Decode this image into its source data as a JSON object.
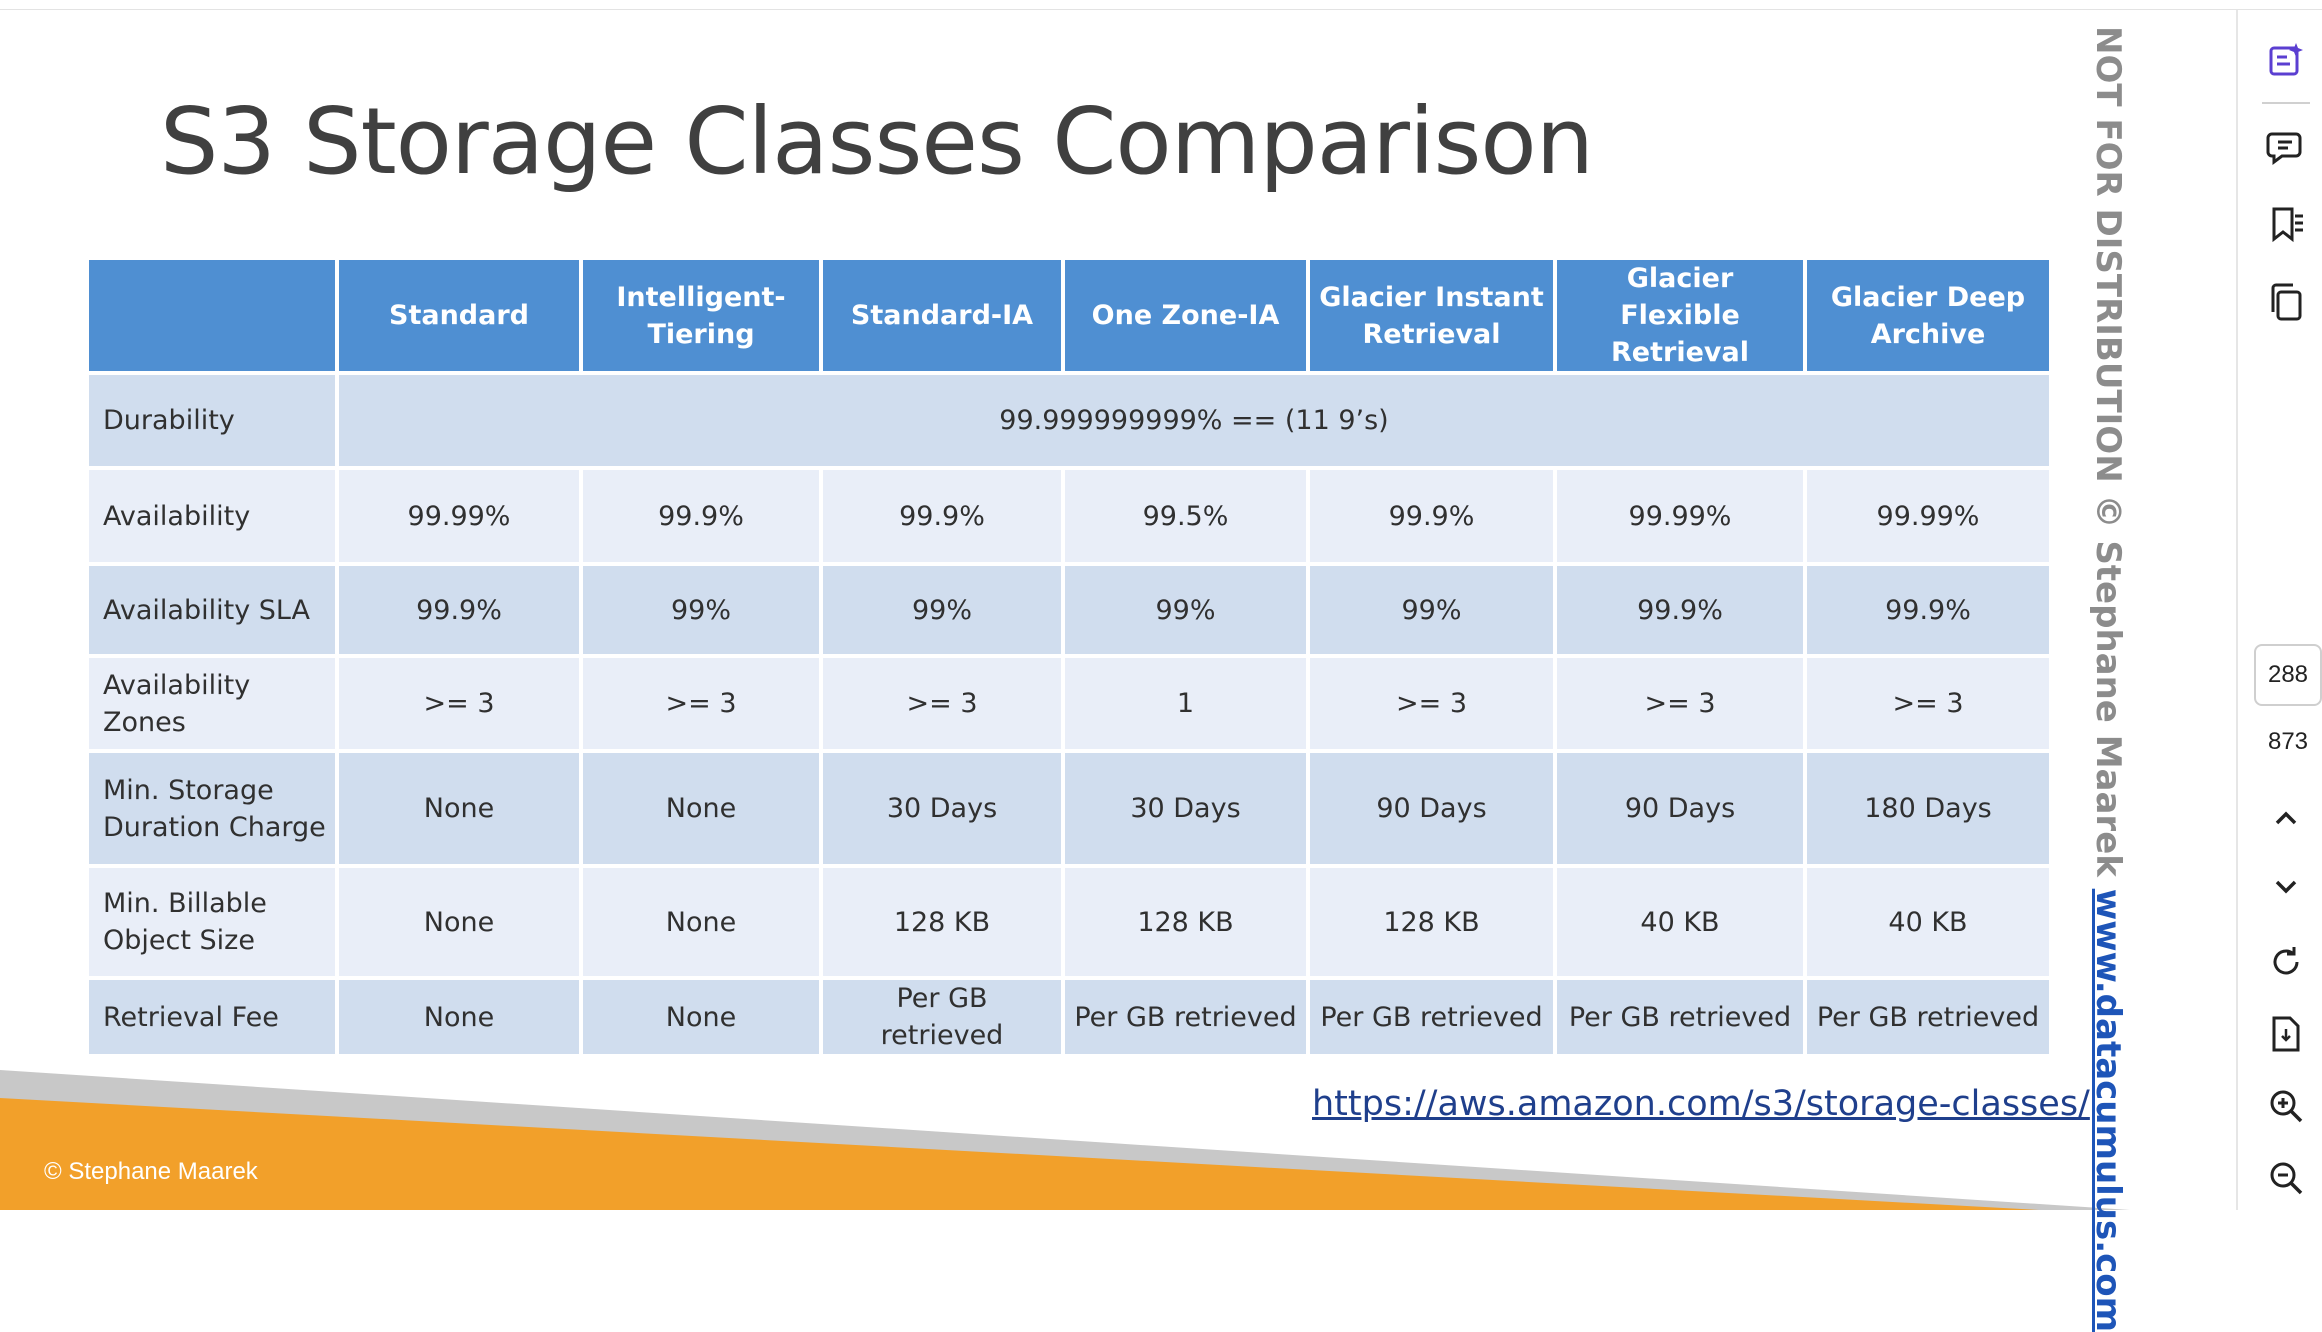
{
  "slide": {
    "title": "S3 Storage Classes Comparison",
    "copyright": "© Stephane Maarek",
    "link": "https://aws.amazon.com/s3/storage-classes/",
    "watermark_text": "NOT FOR DISTRIBUTION © Stephane Maarek ",
    "watermark_site": "www.datacumulus.com"
  },
  "table": {
    "headers": [
      "",
      "Standard",
      "Intelligent-Tiering",
      "Standard-IA",
      "One Zone-IA",
      "Glacier Instant Retrieval",
      "Glacier Flexible Retrieval",
      "Glacier Deep Archive"
    ],
    "durability": {
      "label": "Durability",
      "value": "99.999999999% == (11 9’s)"
    },
    "rows": [
      {
        "label": "Availability",
        "values": [
          "99.99%",
          "99.9%",
          "99.9%",
          "99.5%",
          "99.9%",
          "99.99%",
          "99.99%"
        ]
      },
      {
        "label": "Availability SLA",
        "values": [
          "99.9%",
          "99%",
          "99%",
          "99%",
          "99%",
          "99.9%",
          "99.9%"
        ]
      },
      {
        "label": "Availability Zones",
        "values": [
          ">= 3",
          ">= 3",
          ">= 3",
          "1",
          ">= 3",
          ">= 3",
          ">= 3"
        ]
      },
      {
        "label": "Min. Storage Duration Charge",
        "values": [
          "None",
          "None",
          "30 Days",
          "30 Days",
          "90 Days",
          "90 Days",
          "180 Days"
        ]
      },
      {
        "label": "Min. Billable Object Size",
        "values": [
          "None",
          "None",
          "128 KB",
          "128 KB",
          "128 KB",
          "40 KB",
          "40 KB"
        ]
      },
      {
        "label": "Retrieval Fee",
        "values": [
          "None",
          "None",
          "Per GB retrieved",
          "Per GB retrieved",
          "Per GB retrieved",
          "Per GB retrieved",
          "Per GB retrieved"
        ]
      }
    ]
  },
  "sidebar": {
    "current_page": "288",
    "total_pages": "873",
    "icons": [
      "ai-notes-icon",
      "comment-icon",
      "bookmark-icon",
      "copy-pages-icon",
      "chevron-up-icon",
      "chevron-down-icon",
      "refresh-icon",
      "export-page-icon",
      "zoom-in-icon",
      "zoom-out-icon"
    ]
  }
}
